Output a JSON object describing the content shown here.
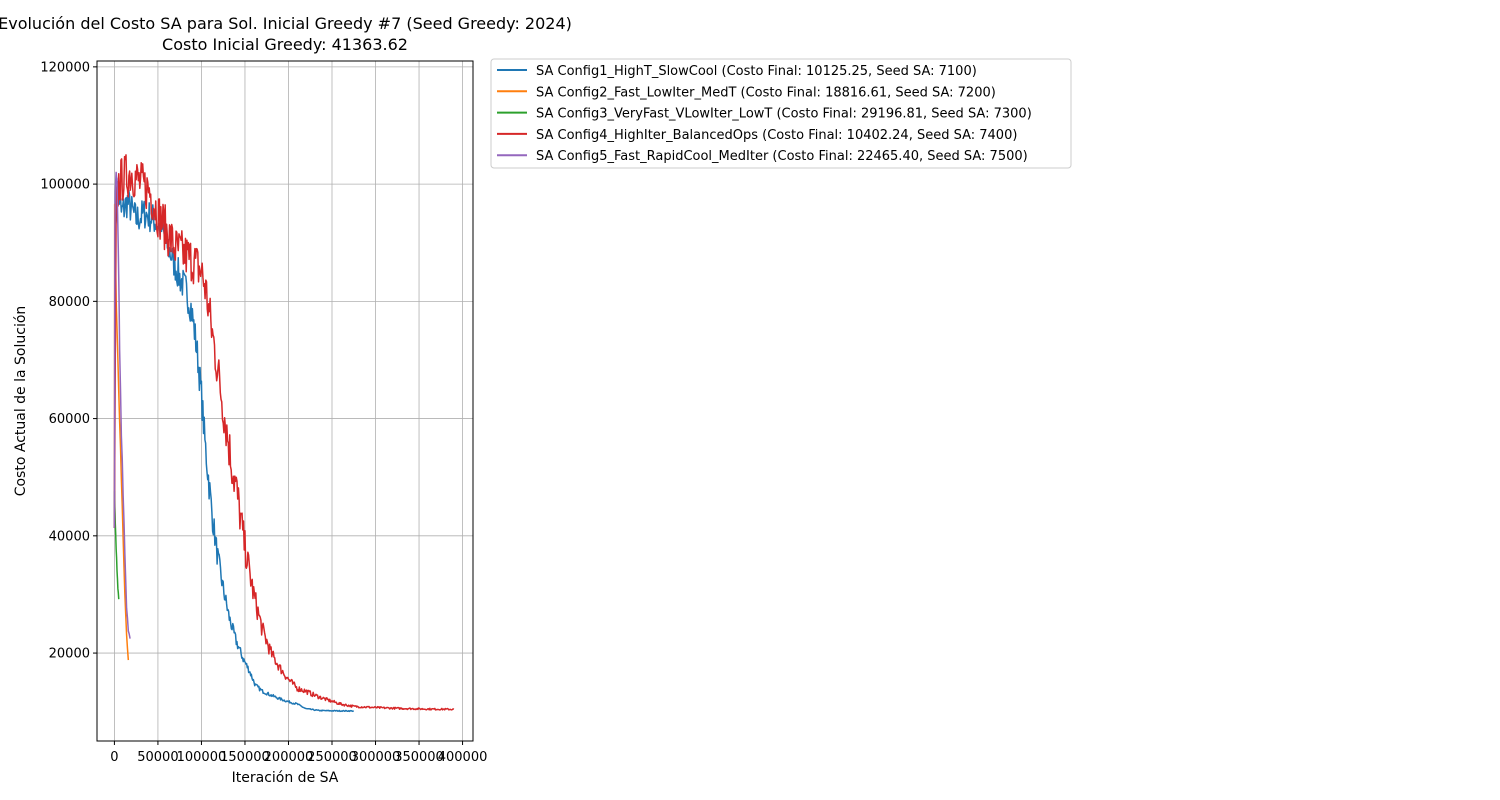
{
  "chart_data": {
    "type": "line",
    "title": "Evolución del Costo SA para Sol. Inicial Greedy #7 (Seed Greedy: 2024)",
    "subtitle": "Costo Inicial Greedy: 41363.62",
    "xlabel": "Iteración de SA",
    "ylabel": "Costo Actual de la Solución",
    "xlim": [
      -20000,
      412000
    ],
    "ylim": [
      5000,
      121000
    ],
    "xticks": [
      0,
      50000,
      100000,
      150000,
      200000,
      250000,
      300000,
      350000,
      400000
    ],
    "xtick_labels": [
      "0",
      "50000",
      "100000",
      "150000",
      "200000",
      "250000",
      "300000",
      "350000",
      "400000"
    ],
    "yticks": [
      20000,
      40000,
      60000,
      80000,
      100000,
      120000
    ],
    "ytick_labels": [
      "20000",
      "40000",
      "60000",
      "80000",
      "100000",
      "120000"
    ],
    "grid": true,
    "legend_position": "outside upper right",
    "series": [
      {
        "name": "SA Config1_HighT_SlowCool (Costo Final: 10125.25, Seed SA: 7100)",
        "color": "#1f77b4",
        "noise": 2800,
        "x": [
          0,
          1000,
          3000,
          8000,
          15000,
          25000,
          35000,
          45000,
          55000,
          65000,
          75000,
          82000,
          88000,
          92000,
          96000,
          100000,
          104000,
          108000,
          112000,
          118000,
          125000,
          132000,
          140000,
          148000,
          155000,
          162000,
          170000,
          180000,
          190000,
          200000,
          210000,
          220000,
          235000,
          250000,
          275000
        ],
        "y": [
          41363,
          90000,
          100000,
          95000,
          97000,
          94000,
          95000,
          94000,
          92000,
          88000,
          84000,
          82000,
          79000,
          75000,
          70000,
          64000,
          56000,
          50000,
          44000,
          37000,
          31000,
          26000,
          22000,
          19000,
          17000,
          14500,
          13500,
          12800,
          12200,
          11700,
          11300,
          10500,
          10200,
          10150,
          10125
        ]
      },
      {
        "name": "SA Config2_Fast_LowIter_MedT (Costo Final: 18816.61, Seed SA: 7200)",
        "color": "#ff7f0e",
        "noise": 600,
        "x": [
          0,
          300,
          800,
          2000,
          4000,
          6000,
          8000,
          10000,
          12000,
          14000,
          16000
        ],
        "y": [
          41363,
          96000,
          90000,
          80000,
          70000,
          60000,
          50000,
          40000,
          30000,
          23000,
          18816
        ]
      },
      {
        "name": "SA Config3_VeryFast_VLowIter_LowT (Costo Final: 29196.81, Seed SA: 7300)",
        "color": "#2ca02c",
        "noise": 500,
        "x": [
          0,
          200,
          500,
          1000,
          2000,
          3000,
          4000,
          5000
        ],
        "y": [
          41363,
          48000,
          45000,
          42000,
          38000,
          34000,
          31000,
          29196
        ]
      },
      {
        "name": "SA Config4_HighIter_BalancedOps (Costo Final: 10402.24, Seed SA: 7400)",
        "color": "#d62728",
        "noise": 4000,
        "x": [
          0,
          2000,
          5000,
          10000,
          20000,
          30000,
          40000,
          50000,
          60000,
          70000,
          80000,
          90000,
          100000,
          105000,
          110000,
          115000,
          120000,
          125000,
          130000,
          135000,
          140000,
          145000,
          150000,
          155000,
          160000,
          165000,
          170000,
          180000,
          190000,
          200000,
          210000,
          220000,
          230000,
          245000,
          260000,
          275000,
          300000,
          330000,
          360000,
          390000
        ],
        "y": [
          41363,
          95000,
          100000,
          101000,
          102000,
          100000,
          99000,
          95000,
          92000,
          89000,
          88000,
          87000,
          85000,
          82000,
          77000,
          72000,
          67000,
          62000,
          57000,
          52000,
          48000,
          43000,
          38000,
          34000,
          30000,
          27000,
          24000,
          20000,
          17500,
          15500,
          14000,
          13500,
          12800,
          12000,
          11300,
          10900,
          10700,
          10550,
          10450,
          10402
        ]
      },
      {
        "name": "SA Config5_Fast_RapidCool_MedIter (Costo Final: 22465.40, Seed SA: 7500)",
        "color": "#9467bd",
        "noise": 1000,
        "x": [
          0,
          500,
          1000,
          2000,
          3000,
          4000,
          5000,
          6000,
          8000,
          10000,
          12000,
          14000,
          16000,
          18000
        ],
        "y": [
          41363,
          92000,
          98000,
          103000,
          100000,
          92000,
          84000,
          72000,
          58000,
          48000,
          37000,
          28000,
          24000,
          22465
        ]
      }
    ]
  }
}
